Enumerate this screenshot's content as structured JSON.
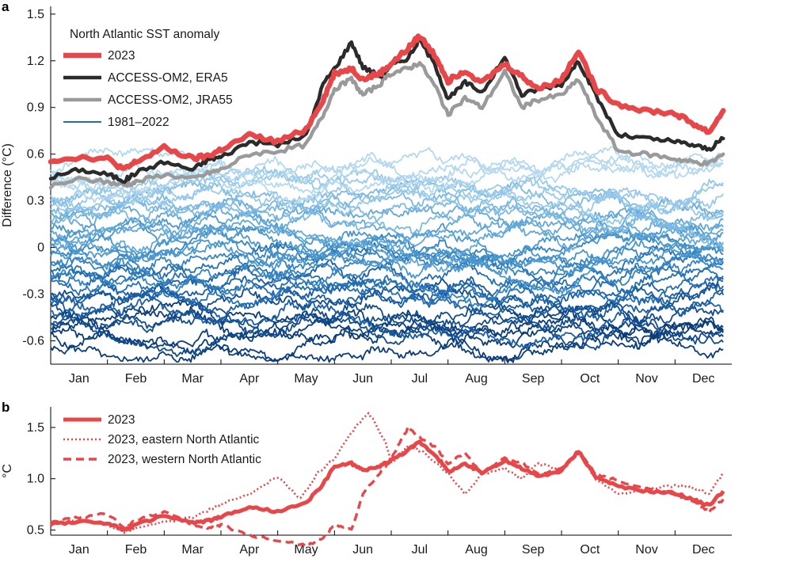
{
  "chart_data": [
    {
      "panel": "a",
      "type": "line",
      "legend_title": "North Atlantic SST anomaly",
      "ylabel": "Difference (°C)",
      "xlabel": "",
      "ylim": [
        -0.75,
        1.55
      ],
      "yticks": [
        1.5,
        1.2,
        0.9,
        0.6,
        0.3,
        0,
        -0.3,
        -0.6
      ],
      "ytick_labels": [
        "1.5",
        "1.2",
        "0.9",
        "0.6",
        "0.3",
        "0",
        "-0.3",
        "-0.6"
      ],
      "categories": [
        "Jan",
        "Feb",
        "Mar",
        "Apr",
        "May",
        "Jun",
        "Jul",
        "Aug",
        "Sep",
        "Oct",
        "Nov",
        "Dec"
      ],
      "grid": false,
      "legend_position": "top-left",
      "series": [
        {
          "name": "2023",
          "color": "#e8474a",
          "style": "solid-thick",
          "x": [
            0,
            0.5,
            1,
            1.3,
            1.5,
            2,
            2.5,
            2.8,
            3,
            3.5,
            4,
            4.5,
            4.8,
            5,
            5.3,
            5.5,
            5.8,
            6,
            6.3,
            6.5,
            6.8,
            7,
            7.3,
            7.6,
            8,
            8.3,
            8.6,
            9,
            9.3,
            9.6,
            10,
            10.5,
            11,
            11.3,
            11.6,
            11.85
          ],
          "y": [
            0.56,
            0.58,
            0.57,
            0.5,
            0.55,
            0.64,
            0.57,
            0.59,
            0.63,
            0.72,
            0.68,
            0.76,
            0.95,
            1.12,
            1.15,
            1.08,
            1.12,
            1.18,
            1.28,
            1.36,
            1.22,
            1.07,
            1.14,
            1.06,
            1.18,
            1.1,
            1.02,
            1.08,
            1.27,
            1.02,
            0.92,
            0.88,
            0.86,
            0.8,
            0.74,
            0.88
          ]
        },
        {
          "name": "ACCESS-OM2, ERA5",
          "color": "#2b2b2b",
          "style": "solid",
          "x": [
            0,
            0.5,
            1,
            1.3,
            1.5,
            2,
            2.5,
            2.8,
            3,
            3.5,
            4,
            4.5,
            4.8,
            5,
            5.3,
            5.5,
            5.8,
            6,
            6.3,
            6.5,
            6.8,
            7,
            7.3,
            7.6,
            8,
            8.3,
            8.6,
            9,
            9.3,
            9.6,
            10,
            10.5,
            11,
            11.3,
            11.6,
            11.85
          ],
          "y": [
            0.45,
            0.5,
            0.47,
            0.43,
            0.48,
            0.55,
            0.5,
            0.57,
            0.58,
            0.68,
            0.66,
            0.72,
            1.05,
            1.15,
            1.32,
            1.16,
            1.1,
            1.17,
            1.22,
            1.34,
            1.15,
            0.95,
            1.06,
            1.0,
            1.22,
            0.98,
            1.02,
            1.05,
            1.2,
            0.98,
            0.72,
            0.7,
            0.68,
            0.66,
            0.63,
            0.7
          ]
        },
        {
          "name": "ACCESS-OM2, JRA55",
          "color": "#9a9a9a",
          "style": "solid",
          "x": [
            0,
            0.5,
            1,
            1.3,
            1.5,
            2,
            2.5,
            2.8,
            3,
            3.5,
            4,
            4.5,
            4.8,
            5,
            5.3,
            5.5,
            5.8,
            6,
            6.3,
            6.5,
            6.8,
            7,
            7.3,
            7.6,
            8,
            8.3,
            8.6,
            9,
            9.3,
            9.6,
            10,
            10.5,
            11,
            11.3,
            11.6,
            11.85
          ],
          "y": [
            0.39,
            0.44,
            0.42,
            0.4,
            0.42,
            0.47,
            0.44,
            0.48,
            0.5,
            0.6,
            0.62,
            0.66,
            0.85,
            1.02,
            1.08,
            0.98,
            1.05,
            1.12,
            1.15,
            1.19,
            1.02,
            0.85,
            0.96,
            0.9,
            1.13,
            0.9,
            0.95,
            0.98,
            1.08,
            0.85,
            0.62,
            0.6,
            0.57,
            0.55,
            0.54,
            0.6
          ]
        },
        {
          "name": "1981–2022",
          "color": "#1f6fb4",
          "style": "solid-thin",
          "values_per_year": "42 yearly traces between approximately -0.75 and 0.85 °C"
        }
      ]
    },
    {
      "panel": "b",
      "type": "line",
      "ylabel": "°C",
      "xlabel": "",
      "ylim": [
        0.45,
        1.7
      ],
      "yticks": [
        1.5,
        1.0,
        0.5
      ],
      "ytick_labels": [
        "1.5",
        "1.0",
        "0.5"
      ],
      "categories": [
        "Jan",
        "Feb",
        "Mar",
        "Apr",
        "May",
        "Jun",
        "Jul",
        "Aug",
        "Sep",
        "Oct",
        "Nov",
        "Dec"
      ],
      "grid": false,
      "legend_position": "top-left",
      "series": [
        {
          "name": "2023",
          "color": "#e8474a",
          "style": "solid",
          "x": [
            0,
            0.5,
            1,
            1.3,
            1.5,
            2,
            2.5,
            2.8,
            3,
            3.5,
            4,
            4.5,
            4.8,
            5,
            5.3,
            5.5,
            5.8,
            6,
            6.3,
            6.5,
            6.8,
            7,
            7.3,
            7.6,
            8,
            8.3,
            8.6,
            9,
            9.3,
            9.6,
            10,
            10.5,
            11,
            11.3,
            11.6,
            11.85
          ],
          "y": [
            0.56,
            0.58,
            0.57,
            0.5,
            0.55,
            0.64,
            0.57,
            0.59,
            0.63,
            0.72,
            0.68,
            0.76,
            0.95,
            1.12,
            1.15,
            1.08,
            1.12,
            1.18,
            1.28,
            1.36,
            1.22,
            1.07,
            1.14,
            1.06,
            1.18,
            1.1,
            1.02,
            1.08,
            1.27,
            1.02,
            0.92,
            0.88,
            0.86,
            0.8,
            0.74,
            0.88
          ]
        },
        {
          "name": "2023, eastern North Atlantic",
          "color": "#e8474a",
          "style": "dotted",
          "x": [
            0,
            0.5,
            1,
            1.3,
            1.5,
            2,
            2.5,
            2.8,
            3,
            3.5,
            4,
            4.4,
            4.7,
            5,
            5.3,
            5.6,
            5.9,
            6,
            6.3,
            6.6,
            7,
            7.3,
            7.6,
            8,
            8.3,
            8.6,
            9,
            9.3,
            9.6,
            10,
            10.5,
            11,
            11.3,
            11.6,
            11.85
          ],
          "y": [
            0.55,
            0.6,
            0.55,
            0.48,
            0.52,
            0.58,
            0.62,
            0.7,
            0.75,
            0.85,
            1.02,
            0.8,
            1.05,
            1.2,
            1.45,
            1.65,
            1.35,
            1.15,
            1.32,
            1.25,
            1.05,
            0.85,
            1.05,
            1.1,
            1.0,
            1.15,
            1.08,
            1.25,
            1.0,
            0.85,
            0.9,
            0.93,
            0.92,
            0.85,
            1.05
          ]
        },
        {
          "name": "2023, western North Atlantic",
          "color": "#e8474a",
          "style": "dashed",
          "x": [
            0,
            0.5,
            1,
            1.3,
            1.5,
            2,
            2.5,
            2.8,
            3,
            3.5,
            4,
            4.5,
            4.8,
            5,
            5.3,
            5.5,
            5.8,
            6,
            6.3,
            6.5,
            6.8,
            7,
            7.3,
            7.6,
            8,
            8.3,
            8.6,
            9,
            9.3,
            9.6,
            10,
            10.5,
            11,
            11.3,
            11.6,
            11.85
          ],
          "y": [
            0.58,
            0.62,
            0.66,
            0.52,
            0.6,
            0.68,
            0.55,
            0.52,
            0.55,
            0.45,
            0.4,
            0.35,
            0.42,
            0.55,
            0.5,
            0.85,
            1.05,
            1.2,
            1.5,
            1.4,
            1.3,
            1.15,
            1.25,
            1.05,
            1.2,
            1.15,
            1.05,
            1.1,
            1.27,
            1.05,
            0.98,
            0.9,
            0.85,
            0.78,
            0.68,
            0.8
          ]
        }
      ]
    }
  ]
}
